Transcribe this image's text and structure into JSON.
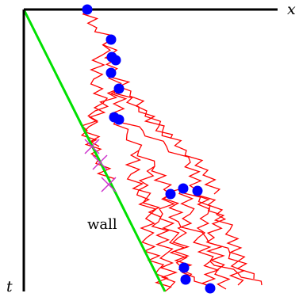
{
  "labels": {
    "x_axis": "x",
    "t_axis": "t",
    "wall": "wall"
  },
  "colors": {
    "axes": "#000000",
    "wall_line": "#00e000",
    "walks": "#ff0000",
    "particles": "#0000ff",
    "crossings": "#cc33cc"
  },
  "icons": {
    "particle": "filled-circle",
    "crossing": "x-cross-mark"
  }
}
